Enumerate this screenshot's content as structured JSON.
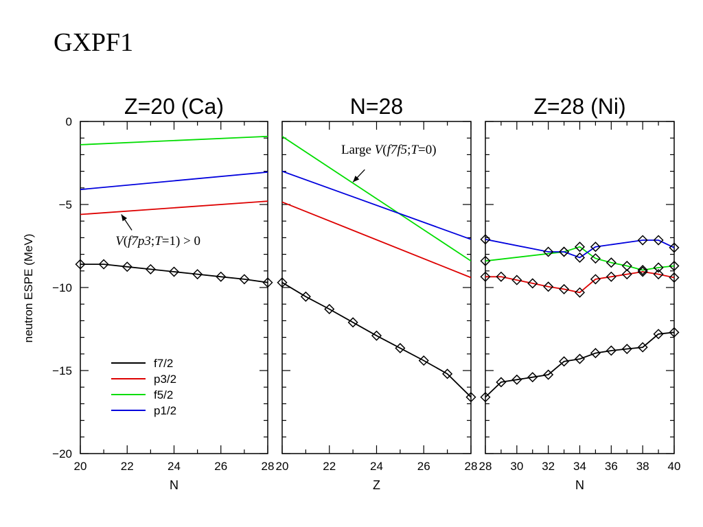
{
  "slide": {
    "title": "GXPF1"
  },
  "figure": {
    "ylabel": "neutron ESPE (MeV)",
    "ylim": [
      -20,
      0
    ],
    "yticks": [
      0,
      -5,
      -10,
      -15,
      -20
    ],
    "colors": {
      "f7/2": "#000000",
      "p3/2": "#dd0000",
      "f5/2": "#00dd00",
      "p1/2": "#0000dd"
    },
    "legend": {
      "placement": "bottom-left of first panel",
      "entries": [
        {
          "label": "f7/2",
          "color": "#000000"
        },
        {
          "label": "p3/2",
          "color": "#dd0000"
        },
        {
          "label": "f5/2",
          "color": "#00dd00"
        },
        {
          "label": "p1/2",
          "color": "#0000dd"
        }
      ]
    }
  },
  "chart_data": [
    {
      "type": "line",
      "title": "Z=20 (Ca)",
      "xlabel": "N",
      "xlim": [
        20,
        28
      ],
      "xticks": [
        20,
        22,
        24,
        26,
        28
      ],
      "series": [
        {
          "name": "f7/2",
          "markers": true,
          "x": [
            20,
            21,
            22,
            23,
            24,
            25,
            26,
            27,
            28
          ],
          "y": [
            -8.6,
            -8.6,
            -8.75,
            -8.9,
            -9.05,
            -9.2,
            -9.35,
            -9.5,
            -9.7
          ]
        },
        {
          "name": "p3/2",
          "markers": false,
          "x": [
            20,
            28
          ],
          "y": [
            -5.6,
            -4.8
          ]
        },
        {
          "name": "f5/2",
          "markers": false,
          "x": [
            20,
            28
          ],
          "y": [
            -1.4,
            -0.9
          ]
        },
        {
          "name": "p1/2",
          "markers": false,
          "x": [
            20,
            28
          ],
          "y": [
            -4.1,
            -3.05
          ]
        }
      ],
      "annotations": [
        {
          "text_parts": [
            {
              "t": "V",
              "i": true
            },
            {
              "t": "(",
              "i": false
            },
            {
              "t": "f7p3",
              "i": true
            },
            {
              "t": ";",
              "i": false
            },
            {
              "t": "T",
              "i": true
            },
            {
              "t": "=1) > 0",
              "i": false
            }
          ],
          "text_at": [
            21.5,
            -7.2
          ],
          "arrow_from": [
            22.2,
            -6.55
          ],
          "arrow_to": [
            21.75,
            -5.6
          ]
        }
      ]
    },
    {
      "type": "line",
      "title": "N=28",
      "xlabel": "Z",
      "xlim": [
        20,
        28
      ],
      "xticks": [
        20,
        22,
        24,
        26,
        28
      ],
      "series": [
        {
          "name": "f7/2",
          "markers": true,
          "x": [
            20,
            21,
            22,
            23,
            24,
            25,
            26,
            27,
            28
          ],
          "y": [
            -9.7,
            -10.55,
            -11.3,
            -12.1,
            -12.9,
            -13.65,
            -14.4,
            -15.2,
            -16.6
          ]
        },
        {
          "name": "p3/2",
          "markers": false,
          "x": [
            20,
            28
          ],
          "y": [
            -4.85,
            -9.4
          ]
        },
        {
          "name": "f5/2",
          "markers": false,
          "x": [
            20,
            28
          ],
          "y": [
            -0.9,
            -8.4
          ]
        },
        {
          "name": "p1/2",
          "markers": false,
          "x": [
            20,
            28
          ],
          "y": [
            -3.0,
            -7.1
          ]
        }
      ],
      "annotations": [
        {
          "text_parts": [
            {
              "t": "Large ",
              "i": false
            },
            {
              "t": "V",
              "i": true
            },
            {
              "t": "(",
              "i": false
            },
            {
              "t": "f7f5",
              "i": true
            },
            {
              "t": ";",
              "i": false
            },
            {
              "t": "T",
              "i": true
            },
            {
              "t": "=0)",
              "i": false
            }
          ],
          "text_at": [
            22.5,
            -1.7
          ],
          "arrow_from": [
            23.5,
            -2.9
          ],
          "arrow_to": [
            23.0,
            -3.65
          ]
        }
      ]
    },
    {
      "type": "line",
      "title": "Z=28 (Ni)",
      "xlabel": "N",
      "xlim": [
        28,
        40
      ],
      "xticks": [
        28,
        30,
        32,
        34,
        36,
        38,
        40
      ],
      "series": [
        {
          "name": "f7/2",
          "markers": true,
          "x": [
            28,
            29,
            30,
            31,
            32,
            33,
            34,
            35,
            36,
            37,
            38,
            39,
            40
          ],
          "y": [
            -16.6,
            -15.7,
            -15.55,
            -15.4,
            -15.25,
            -14.45,
            -14.3,
            -13.95,
            -13.8,
            -13.7,
            -13.6,
            -12.8,
            -12.7
          ]
        },
        {
          "name": "p3/2",
          "markers": true,
          "x": [
            28,
            29,
            30,
            31,
            32,
            33,
            34,
            35,
            36,
            37,
            38,
            39,
            40
          ],
          "y": [
            -9.35,
            -9.35,
            -9.55,
            -9.75,
            -9.95,
            -10.1,
            -10.3,
            -9.5,
            -9.35,
            -9.2,
            -9.05,
            -9.2,
            -9.4
          ]
        },
        {
          "name": "f5/2",
          "markers": true,
          "x": [
            28,
            33,
            34,
            35,
            36,
            37,
            38,
            39,
            40
          ],
          "y": [
            -8.4,
            -7.85,
            -7.55,
            -8.25,
            -8.5,
            -8.7,
            -8.95,
            -8.8,
            -8.7
          ]
        },
        {
          "name": "p1/2",
          "markers": true,
          "x": [
            28,
            32,
            33,
            34,
            35,
            38,
            39,
            40
          ],
          "y": [
            -7.1,
            -7.85,
            -7.85,
            -8.2,
            -7.55,
            -7.15,
            -7.15,
            -7.6
          ]
        }
      ],
      "annotations": []
    }
  ]
}
